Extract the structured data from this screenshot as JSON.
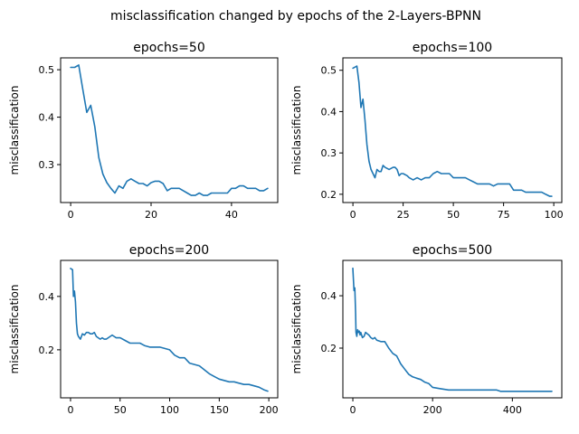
{
  "suptitle": "misclassification changed by epochs of the 2-Layers-BPNN",
  "colors": {
    "line": "#1f77b4",
    "axes": "#000000",
    "background": "#ffffff"
  },
  "chart_data": [
    {
      "type": "line",
      "title": "epochs=50",
      "xlabel": "",
      "ylabel": "misclassification",
      "xlim": [
        -2.5,
        51.5
      ],
      "ylim": [
        0.22,
        0.525
      ],
      "xticks": [
        0,
        20,
        40
      ],
      "yticks": [
        0.3,
        0.4,
        0.5
      ],
      "series": [
        {
          "x": [
            0,
            1,
            2,
            3,
            4,
            5,
            6,
            7,
            8,
            9,
            10,
            11,
            12,
            13,
            14,
            15,
            16,
            17,
            18,
            19,
            20,
            21,
            22,
            23,
            24,
            25,
            26,
            27,
            28,
            29,
            30,
            31,
            32,
            33,
            34,
            35,
            36,
            37,
            38,
            39,
            40,
            41,
            42,
            43,
            44,
            45,
            46,
            47,
            48,
            49
          ],
          "values": [
            0.505,
            0.505,
            0.51,
            0.46,
            0.41,
            0.425,
            0.38,
            0.315,
            0.28,
            0.262,
            0.25,
            0.24,
            0.255,
            0.25,
            0.265,
            0.27,
            0.265,
            0.26,
            0.26,
            0.255,
            0.262,
            0.265,
            0.265,
            0.26,
            0.245,
            0.25,
            0.25,
            0.25,
            0.245,
            0.24,
            0.235,
            0.235,
            0.24,
            0.235,
            0.235,
            0.24,
            0.24,
            0.24,
            0.24,
            0.24,
            0.25,
            0.25,
            0.255,
            0.255,
            0.25,
            0.25,
            0.25,
            0.245,
            0.245,
            0.25
          ]
        }
      ]
    },
    {
      "type": "line",
      "title": "epochs=100",
      "xlabel": "",
      "ylabel": "misclassification",
      "xlim": [
        -5,
        104
      ],
      "ylim": [
        0.18,
        0.53
      ],
      "xticks": [
        0,
        25,
        50,
        75,
        100
      ],
      "yticks": [
        0.2,
        0.3,
        0.4,
        0.5
      ],
      "series": [
        {
          "x": [
            0,
            2,
            3,
            4,
            5,
            6,
            7,
            8,
            9,
            10,
            11,
            12,
            13,
            14,
            15,
            16,
            18,
            20,
            21,
            22,
            23,
            24,
            25,
            27,
            28,
            30,
            32,
            34,
            36,
            38,
            40,
            42,
            44,
            46,
            48,
            50,
            52,
            54,
            56,
            58,
            60,
            62,
            64,
            66,
            68,
            70,
            72,
            74,
            76,
            78,
            80,
            82,
            84,
            86,
            88,
            90,
            92,
            94,
            96,
            98,
            99
          ],
          "values": [
            0.505,
            0.51,
            0.47,
            0.41,
            0.43,
            0.38,
            0.32,
            0.28,
            0.26,
            0.25,
            0.24,
            0.26,
            0.255,
            0.255,
            0.27,
            0.265,
            0.26,
            0.265,
            0.265,
            0.26,
            0.245,
            0.25,
            0.25,
            0.245,
            0.24,
            0.235,
            0.24,
            0.235,
            0.24,
            0.24,
            0.25,
            0.255,
            0.25,
            0.25,
            0.25,
            0.24,
            0.24,
            0.24,
            0.24,
            0.235,
            0.23,
            0.225,
            0.225,
            0.225,
            0.225,
            0.22,
            0.225,
            0.225,
            0.225,
            0.225,
            0.21,
            0.21,
            0.21,
            0.205,
            0.205,
            0.205,
            0.205,
            0.205,
            0.2,
            0.195,
            0.195
          ]
        }
      ]
    },
    {
      "type": "line",
      "title": "epochs=200",
      "xlabel": "",
      "ylabel": "misclassification",
      "xlim": [
        -10,
        209
      ],
      "ylim": [
        0.02,
        0.535
      ],
      "xticks": [
        0,
        50,
        100,
        150,
        200
      ],
      "yticks": [
        0.2,
        0.4
      ],
      "series": [
        {
          "x": [
            0,
            2,
            3,
            4,
            5,
            6,
            7,
            8,
            10,
            12,
            14,
            16,
            18,
            20,
            22,
            24,
            26,
            28,
            30,
            32,
            34,
            36,
            38,
            40,
            42,
            44,
            46,
            48,
            50,
            55,
            60,
            65,
            70,
            75,
            80,
            85,
            90,
            95,
            100,
            105,
            110,
            115,
            120,
            125,
            130,
            135,
            140,
            145,
            150,
            155,
            160,
            165,
            170,
            175,
            180,
            185,
            190,
            195,
            199
          ],
          "values": [
            0.505,
            0.5,
            0.4,
            0.42,
            0.38,
            0.3,
            0.26,
            0.25,
            0.24,
            0.26,
            0.255,
            0.265,
            0.265,
            0.26,
            0.26,
            0.265,
            0.25,
            0.245,
            0.24,
            0.245,
            0.24,
            0.24,
            0.245,
            0.25,
            0.255,
            0.25,
            0.245,
            0.245,
            0.245,
            0.235,
            0.225,
            0.225,
            0.225,
            0.215,
            0.21,
            0.21,
            0.21,
            0.205,
            0.2,
            0.18,
            0.17,
            0.17,
            0.15,
            0.145,
            0.14,
            0.125,
            0.11,
            0.1,
            0.09,
            0.085,
            0.08,
            0.08,
            0.075,
            0.07,
            0.07,
            0.065,
            0.06,
            0.05,
            0.045
          ]
        }
      ]
    },
    {
      "type": "line",
      "title": "epochs=500",
      "xlabel": "",
      "ylabel": "misclassification",
      "xlim": [
        -25,
        524
      ],
      "ylim": [
        0.01,
        0.535
      ],
      "xticks": [
        0,
        200,
        400
      ],
      "yticks": [
        0.2,
        0.4
      ],
      "series": [
        {
          "x": [
            0,
            3,
            5,
            7,
            8,
            10,
            12,
            14,
            16,
            18,
            20,
            24,
            28,
            32,
            36,
            40,
            45,
            50,
            55,
            60,
            70,
            80,
            90,
            100,
            110,
            120,
            130,
            140,
            150,
            160,
            170,
            180,
            190,
            200,
            220,
            240,
            260,
            280,
            300,
            320,
            340,
            360,
            370,
            380,
            400,
            420,
            440,
            460,
            480,
            499
          ],
          "values": [
            0.505,
            0.42,
            0.43,
            0.33,
            0.26,
            0.245,
            0.27,
            0.26,
            0.265,
            0.25,
            0.26,
            0.24,
            0.245,
            0.26,
            0.255,
            0.25,
            0.24,
            0.235,
            0.24,
            0.23,
            0.225,
            0.225,
            0.2,
            0.18,
            0.17,
            0.14,
            0.12,
            0.1,
            0.09,
            0.085,
            0.08,
            0.07,
            0.065,
            0.05,
            0.045,
            0.04,
            0.04,
            0.04,
            0.04,
            0.04,
            0.04,
            0.04,
            0.035,
            0.035,
            0.035,
            0.035,
            0.035,
            0.035,
            0.035,
            0.035
          ]
        }
      ]
    }
  ]
}
